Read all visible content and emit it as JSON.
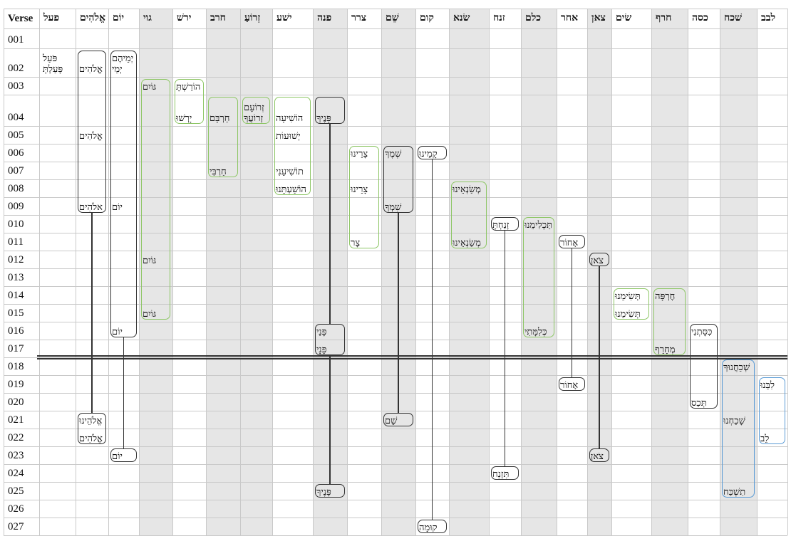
{
  "colors": {
    "black": "#333333",
    "green": "#8dc665",
    "blue": "#5b9bd5",
    "shade": "#e6e6e6"
  },
  "columns": [
    {
      "label": "Verse",
      "shaded": false
    },
    {
      "label": "פעל",
      "shaded": false
    },
    {
      "label": "אֱלֹהִים",
      "shaded": false
    },
    {
      "label": "יוֹם",
      "shaded": false
    },
    {
      "label": "גוי",
      "shaded": true
    },
    {
      "label": "ירשׁ",
      "shaded": false
    },
    {
      "label": "חרב",
      "shaded": true
    },
    {
      "label": "זְרוֹעַ",
      "shaded": true
    },
    {
      "label": "ישׁע",
      "shaded": false
    },
    {
      "label": "פנה",
      "shaded": true
    },
    {
      "label": "צרר",
      "shaded": false
    },
    {
      "label": "שֵׁם",
      "shaded": true
    },
    {
      "label": "קום",
      "shaded": false
    },
    {
      "label": "שׂנא",
      "shaded": true
    },
    {
      "label": "זנח",
      "shaded": false
    },
    {
      "label": "כלם",
      "shaded": true
    },
    {
      "label": "אחר",
      "shaded": false
    },
    {
      "label": "צאן",
      "shaded": true
    },
    {
      "label": "שׂים",
      "shaded": false
    },
    {
      "label": "חרף",
      "shaded": true
    },
    {
      "label": "כסה",
      "shaded": false
    },
    {
      "label": "שׁכח",
      "shaded": true
    },
    {
      "label": "לבב",
      "shaded": false
    }
  ],
  "verses": [
    "001",
    "002",
    "003",
    "004",
    "005",
    "006",
    "007",
    "008",
    "009",
    "010",
    "011",
    "012",
    "013",
    "014",
    "015",
    "016",
    "017",
    "018",
    "019",
    "020",
    "021",
    "022",
    "023",
    "024",
    "025",
    "026",
    "027"
  ],
  "section_break_after": "017",
  "plain_cells": [
    {
      "col": 1,
      "verse": "002",
      "lines": [
        "פֹּעַל",
        "פָּעַלְתָּ"
      ]
    }
  ],
  "chains": [
    {
      "col": 2,
      "boxes": [
        {
          "color": "black",
          "from": "002",
          "to": "009",
          "words": [
            {
              "verse": "002",
              "lines": [
                "אֱלֹהִים"
              ]
            },
            {
              "verse": "005",
              "lines": [
                "אֱלֹהִים"
              ]
            },
            {
              "verse": "009",
              "lines": [
                "אלֹהִים"
              ]
            }
          ]
        },
        {
          "color": "black",
          "from": "021",
          "to": "022",
          "words": [
            {
              "verse": "021",
              "lines": [
                "אֱלֹהֵינוּ"
              ]
            },
            {
              "verse": "022",
              "lines": [
                "אֱלֹהִים"
              ]
            }
          ]
        }
      ]
    },
    {
      "col": 3,
      "boxes": [
        {
          "color": "black",
          "from": "002",
          "to": "016",
          "words": [
            {
              "verse": "002",
              "lines": [
                "יְמֵיהֶם",
                "יְמֵי"
              ]
            },
            {
              "verse": "009",
              "lines": [
                "יוֹם"
              ]
            },
            {
              "verse": "016",
              "lines": [
                "יוֹם"
              ]
            }
          ]
        },
        {
          "color": "black",
          "from": "023",
          "to": "023",
          "words": [
            {
              "verse": "023",
              "lines": [
                "יוֹם"
              ]
            }
          ]
        }
      ]
    },
    {
      "col": 4,
      "boxes": [
        {
          "color": "green",
          "from": "003",
          "to": "015",
          "words": [
            {
              "verse": "003",
              "lines": [
                "גּוֹיִם"
              ]
            },
            {
              "verse": "012",
              "lines": [
                "גּוֹיִם"
              ]
            },
            {
              "verse": "015",
              "lines": [
                "גּוֹיִם"
              ]
            }
          ]
        }
      ]
    },
    {
      "col": 5,
      "boxes": [
        {
          "color": "green",
          "from": "003",
          "to": "004",
          "words": [
            {
              "verse": "003",
              "lines": [
                "הוֹרַשְׁתָּ"
              ]
            },
            {
              "verse": "004",
              "lines": [
                "יָרְשׁוּ"
              ]
            }
          ]
        }
      ]
    },
    {
      "col": 6,
      "boxes": [
        {
          "color": "green",
          "from": "004",
          "to": "007",
          "words": [
            {
              "verse": "004",
              "lines": [
                "חַרְבָּם"
              ]
            },
            {
              "verse": "007",
              "lines": [
                "חַרְבִּי"
              ]
            }
          ]
        }
      ]
    },
    {
      "col": 7,
      "boxes": [
        {
          "color": "green",
          "from": "004",
          "to": "004",
          "words": [
            {
              "verse": "004",
              "lines": [
                "זְרוֹעָם",
                "זְרוֹעֲךָ"
              ]
            }
          ]
        }
      ]
    },
    {
      "col": 8,
      "boxes": [
        {
          "color": "green",
          "from": "004",
          "to": "008",
          "words": [
            {
              "verse": "004",
              "lines": [
                "הוֹשִׁיעָה"
              ]
            },
            {
              "verse": "005",
              "lines": [
                "יְשׁוּעוֹת"
              ]
            },
            {
              "verse": "007",
              "lines": [
                "תוֹשִׁיעֵנִי"
              ]
            },
            {
              "verse": "008",
              "lines": [
                "הוֹשַׁעְתָּנוּ"
              ]
            }
          ]
        }
      ]
    },
    {
      "col": 9,
      "boxes": [
        {
          "color": "black",
          "from": "004",
          "to": "004",
          "words": [
            {
              "verse": "004",
              "lines": [
                "פָּנֶיךָ"
              ]
            }
          ]
        },
        {
          "color": "black",
          "from": "016",
          "to": "017",
          "words": [
            {
              "verse": "016",
              "lines": [
                "פָּנַי"
              ]
            },
            {
              "verse": "017",
              "lines": [
                "פָּנָי"
              ]
            }
          ]
        },
        {
          "color": "black",
          "from": "025",
          "to": "025",
          "words": [
            {
              "verse": "025",
              "lines": [
                "פָּנֶיךָ"
              ]
            }
          ]
        }
      ]
    },
    {
      "col": 10,
      "boxes": [
        {
          "color": "green",
          "from": "006",
          "to": "011",
          "words": [
            {
              "verse": "006",
              "lines": [
                "צָרֵינוּ"
              ]
            },
            {
              "verse": "008",
              "lines": [
                "צָרֵינוּ"
              ]
            },
            {
              "verse": "011",
              "lines": [
                "צָר"
              ]
            }
          ]
        }
      ]
    },
    {
      "col": 11,
      "boxes": [
        {
          "color": "black",
          "from": "006",
          "to": "009",
          "words": [
            {
              "verse": "006",
              "lines": [
                "שְׁמֶךָ"
              ]
            },
            {
              "verse": "009",
              "lines": [
                "שִׁמְךָ"
              ]
            }
          ]
        },
        {
          "color": "black",
          "from": "021",
          "to": "021",
          "words": [
            {
              "verse": "021",
              "lines": [
                "שֵׁם"
              ]
            }
          ]
        }
      ]
    },
    {
      "col": 12,
      "boxes": [
        {
          "color": "black",
          "from": "006",
          "to": "006",
          "words": [
            {
              "verse": "006",
              "lines": [
                "קָמֵינוּ"
              ]
            }
          ]
        },
        {
          "color": "black",
          "from": "027",
          "to": "027",
          "words": [
            {
              "verse": "027",
              "lines": [
                "קוּמָה"
              ]
            }
          ]
        }
      ]
    },
    {
      "col": 13,
      "boxes": [
        {
          "color": "green",
          "from": "008",
          "to": "011",
          "words": [
            {
              "verse": "008",
              "lines": [
                "מְשַׂנְאֵינוּ"
              ]
            },
            {
              "verse": "011",
              "lines": [
                "מְשַׂנְאֵינוּ"
              ]
            }
          ]
        }
      ]
    },
    {
      "col": 14,
      "boxes": [
        {
          "color": "black",
          "from": "010",
          "to": "010",
          "words": [
            {
              "verse": "010",
              "lines": [
                "זָנַחְתָּ"
              ]
            }
          ]
        },
        {
          "color": "black",
          "from": "024",
          "to": "024",
          "words": [
            {
              "verse": "024",
              "lines": [
                "תִּזְנַח"
              ]
            }
          ]
        }
      ]
    },
    {
      "col": 15,
      "boxes": [
        {
          "color": "green",
          "from": "010",
          "to": "016",
          "words": [
            {
              "verse": "010",
              "lines": [
                "תַּכְלִימֵנוּ"
              ]
            },
            {
              "verse": "016",
              "lines": [
                "כְּלִמָּתִי"
              ]
            }
          ]
        }
      ]
    },
    {
      "col": 16,
      "boxes": [
        {
          "color": "black",
          "from": "011",
          "to": "011",
          "words": [
            {
              "verse": "011",
              "lines": [
                "אָחוֹר"
              ]
            }
          ]
        },
        {
          "color": "black",
          "from": "019",
          "to": "019",
          "words": [
            {
              "verse": "019",
              "lines": [
                "אָחוֹר"
              ]
            }
          ]
        }
      ]
    },
    {
      "col": 17,
      "boxes": [
        {
          "color": "black",
          "from": "012",
          "to": "012",
          "words": [
            {
              "verse": "012",
              "lines": [
                "צֹאן"
              ]
            }
          ]
        },
        {
          "color": "black",
          "from": "023",
          "to": "023",
          "words": [
            {
              "verse": "023",
              "lines": [
                "צֹאן"
              ]
            }
          ]
        }
      ]
    },
    {
      "col": 18,
      "boxes": [
        {
          "color": "green",
          "from": "014",
          "to": "015",
          "words": [
            {
              "verse": "014",
              "lines": [
                "תְּשִׂימֵנוּ"
              ]
            },
            {
              "verse": "015",
              "lines": [
                "תְּשִׂימֵנוּ"
              ]
            }
          ]
        }
      ]
    },
    {
      "col": 19,
      "boxes": [
        {
          "color": "green",
          "from": "014",
          "to": "017",
          "words": [
            {
              "verse": "014",
              "lines": [
                "חֶרְפָּה"
              ]
            },
            {
              "verse": "017",
              "lines": [
                "מְחָרֵף"
              ]
            }
          ]
        }
      ]
    },
    {
      "col": 20,
      "boxes": [
        {
          "color": "black",
          "from": "016",
          "to": "020",
          "words": [
            {
              "verse": "016",
              "lines": [
                "כִּסָּתְנִי"
              ]
            },
            {
              "verse": "020",
              "lines": [
                "תְּכַס"
              ]
            }
          ]
        }
      ]
    },
    {
      "col": 21,
      "boxes": [
        {
          "color": "blue",
          "from": "018",
          "to": "025",
          "words": [
            {
              "verse": "018",
              "lines": [
                "שְׁכֵחֲנוּךָ"
              ]
            },
            {
              "verse": "021",
              "lines": [
                "שָׁכַחְנוּ"
              ]
            },
            {
              "verse": "025",
              "lines": [
                "תִשְׁכַּח"
              ]
            }
          ]
        }
      ]
    },
    {
      "col": 22,
      "boxes": [
        {
          "color": "blue",
          "from": "019",
          "to": "022",
          "words": [
            {
              "verse": "019",
              "lines": [
                "לִבֵּנוּ"
              ]
            },
            {
              "verse": "022",
              "lines": [
                "לֵב"
              ]
            }
          ]
        }
      ]
    }
  ]
}
